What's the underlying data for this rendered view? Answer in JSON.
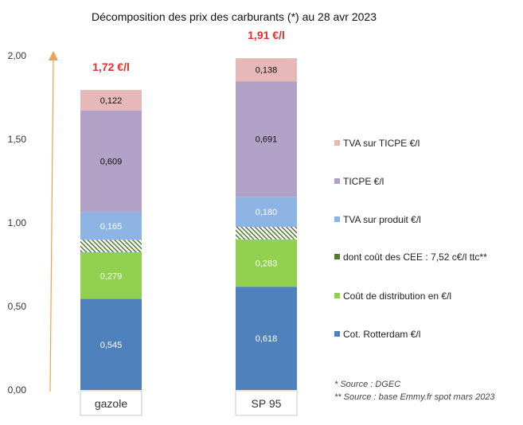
{
  "chart_data": {
    "type": "bar",
    "stacked": true,
    "title": "Décomposition des prix des carburants (*) au 28 avr 2023",
    "ylim": [
      0,
      2.0
    ],
    "yticks": [
      "0,00",
      "0,50",
      "1,00",
      "1,50",
      "2,00"
    ],
    "categories": [
      "gazole",
      "SP 95"
    ],
    "totals": [
      "1,72 €/l",
      "1,91 €/l"
    ],
    "series": [
      {
        "name": "Cot. Rotterdam €/l",
        "values": [
          0.545,
          0.618
        ],
        "labels": [
          "0,545",
          "0,618"
        ],
        "color": "#4f81bd"
      },
      {
        "name": "Coût de distribution en €/l",
        "values": [
          0.279,
          0.283
        ],
        "labels": [
          "0,279",
          "0,283"
        ],
        "color": "#92d050"
      },
      {
        "name": "dont coût des CEE : 7,52 c€/l ttc**",
        "values": [
          0.075,
          0.075
        ],
        "labels": [
          "",
          ""
        ],
        "color": "#4e7a32",
        "pattern": "hatch"
      },
      {
        "name": "TVA sur produit €/l",
        "values": [
          0.165,
          0.18
        ],
        "labels": [
          "0,165",
          "0,180"
        ],
        "color": "#8db4e2"
      },
      {
        "name": "TICPE €/l",
        "values": [
          0.609,
          0.691
        ],
        "labels": [
          "0,609",
          "0,691"
        ],
        "color": "#b2a1c7"
      },
      {
        "name": "TVA sur TICPE €/l",
        "values": [
          0.122,
          0.138
        ],
        "labels": [
          "0,122",
          "0,138"
        ],
        "color": "#e6b8b7"
      }
    ],
    "legend_placement": "right",
    "grid": false,
    "notes": [
      "* Source : DGEC",
      "** Source : base Emmy.fr spot mars 2023"
    ]
  }
}
